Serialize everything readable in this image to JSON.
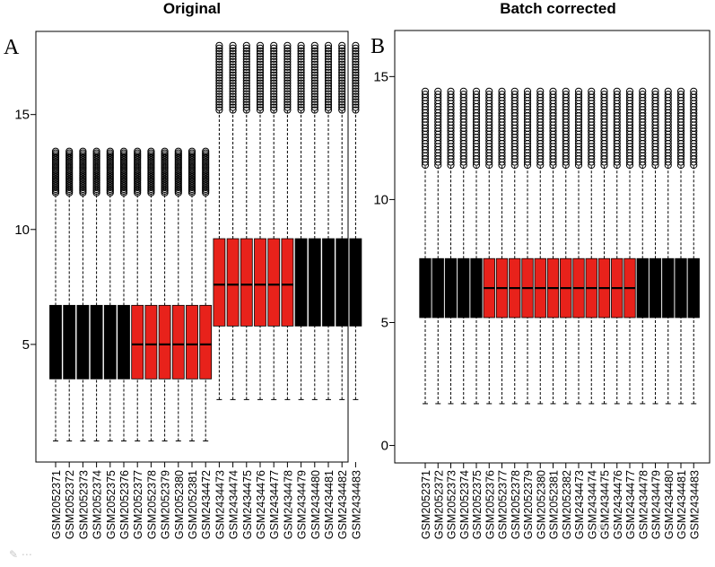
{
  "chart_data": [
    {
      "type": "boxplot",
      "panel_label": "A",
      "title": "Original",
      "ylim": [
        0,
        18.5
      ],
      "yticks": [
        5,
        10,
        15
      ],
      "categories": [
        "GSM2052371",
        "GSM2052372",
        "GSM2052373",
        "GSM2052374",
        "GSM2052375",
        "GSM2052376",
        "GSM2052377",
        "GSM2052378",
        "GSM2052379",
        "GSM2052380",
        "GSM2052381",
        "GSM2434472",
        "GSM2434473",
        "GSM2434474",
        "GSM2434475",
        "GSM2434476",
        "GSM2434477",
        "GSM2434478",
        "GSM2434479",
        "GSM2434480",
        "GSM2434481",
        "GSM2434482",
        "GSM2434483"
      ],
      "colors": [
        "black",
        "black",
        "black",
        "black",
        "black",
        "black",
        "red",
        "red",
        "red",
        "red",
        "red",
        "red",
        "red",
        "red",
        "red",
        "red",
        "red",
        "red",
        "black",
        "black",
        "black",
        "black",
        "black"
      ],
      "groups": [
        {
          "from": 0,
          "to": 5,
          "color": "black",
          "min": 0.8,
          "q1": 3.5,
          "median": 5.0,
          "q3": 6.7,
          "whisker_high": 11.6,
          "outliers_from": 11.6,
          "outliers_to": 13.4
        },
        {
          "from": 6,
          "to": 11,
          "color": "red",
          "min": 0.8,
          "q1": 3.5,
          "median": 5.0,
          "q3": 6.7,
          "whisker_high": 11.6,
          "outliers_from": 11.6,
          "outliers_to": 13.4
        },
        {
          "from": 12,
          "to": 17,
          "color": "red",
          "min": 2.6,
          "q1": 5.8,
          "median": 7.6,
          "q3": 9.6,
          "whisker_high": 15.2,
          "outliers_from": 15.2,
          "outliers_to": 18.0
        },
        {
          "from": 18,
          "to": 22,
          "color": "black",
          "min": 2.6,
          "q1": 5.8,
          "median": 7.6,
          "q3": 9.6,
          "whisker_high": 15.2,
          "outliers_from": 15.2,
          "outliers_to": 18.0
        }
      ]
    },
    {
      "type": "boxplot",
      "panel_label": "B",
      "title": "Batch corrected",
      "ylim": [
        -0.6,
        16.8
      ],
      "yticks": [
        0,
        5,
        10,
        15
      ],
      "categories": [
        "GSM2052371",
        "GSM2052372",
        "GSM2052373",
        "GSM2052374",
        "GSM2052375",
        "GSM2052376",
        "GSM2052377",
        "GSM2052378",
        "GSM2052379",
        "GSM2052380",
        "GSM2052381",
        "GSM2052382",
        "GSM2434473",
        "GSM2434474",
        "GSM2434475",
        "GSM2434476",
        "GSM2434477",
        "GSM2434478",
        "GSM2434479",
        "GSM2434480",
        "GSM2434481",
        "GSM2434483"
      ],
      "colors": [
        "black",
        "black",
        "black",
        "black",
        "black",
        "red",
        "red",
        "red",
        "red",
        "red",
        "red",
        "red",
        "red",
        "red",
        "red",
        "red",
        "red",
        "black",
        "black",
        "black",
        "black",
        "black"
      ],
      "groups": [
        {
          "from": 0,
          "to": 4,
          "color": "black",
          "min": 1.7,
          "q1": 5.2,
          "median": 6.4,
          "q3": 7.6,
          "whisker_high": 11.4,
          "outliers_from": 11.4,
          "outliers_to": 14.4
        },
        {
          "from": 5,
          "to": 16,
          "color": "red",
          "min": 1.7,
          "q1": 5.2,
          "median": 6.4,
          "q3": 7.6,
          "whisker_high": 11.4,
          "outliers_from": 11.4,
          "outliers_to": 14.4
        },
        {
          "from": 17,
          "to": 21,
          "color": "black",
          "min": 1.7,
          "q1": 5.2,
          "median": 6.4,
          "q3": 7.6,
          "whisker_high": 11.4,
          "outliers_from": 11.4,
          "outliers_to": 14.4
        }
      ]
    }
  ]
}
